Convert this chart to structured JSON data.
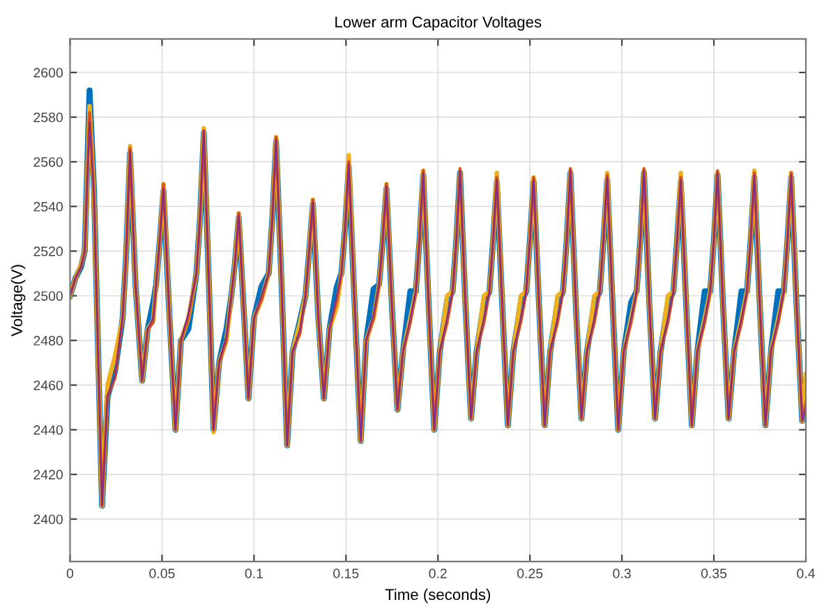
{
  "chart_data": {
    "type": "line",
    "title": "Lower arm Capacitor Voltages",
    "xlabel": "Time (seconds)",
    "ylabel": "Voltage(V)",
    "x": [
      0,
      0.003,
      0.006,
      0.008,
      0.0106,
      0.013,
      0.0174,
      0.0204,
      0.0244,
      0.0286,
      0.0306,
      0.0326,
      0.0356,
      0.0392,
      0.0422,
      0.0452,
      0.0468,
      0.0488,
      0.0508,
      0.0538,
      0.0573,
      0.0603,
      0.0643,
      0.0687,
      0.0707,
      0.0727,
      0.0757,
      0.078,
      0.081,
      0.085,
      0.0877,
      0.0897,
      0.0917,
      0.0947,
      0.097,
      0.1,
      0.104,
      0.108,
      0.11,
      0.112,
      0.115,
      0.118,
      0.121,
      0.125,
      0.128,
      0.13,
      0.132,
      0.135,
      0.138,
      0.141,
      0.145,
      0.1475,
      0.1495,
      0.1515,
      0.1545,
      0.158,
      0.161,
      0.165,
      0.168,
      0.17,
      0.172,
      0.175,
      0.178,
      0.181,
      0.185,
      0.188,
      0.19,
      0.192,
      0.195,
      0.198,
      0.201,
      0.205,
      0.208,
      0.21,
      0.212,
      0.215,
      0.218,
      0.221,
      0.225,
      0.228,
      0.23,
      0.232,
      0.235,
      0.238,
      0.241,
      0.245,
      0.248,
      0.25,
      0.252,
      0.255,
      0.258,
      0.261,
      0.265,
      0.268,
      0.27,
      0.272,
      0.275,
      0.278,
      0.281,
      0.285,
      0.288,
      0.29,
      0.292,
      0.295,
      0.298,
      0.301,
      0.305,
      0.308,
      0.31,
      0.312,
      0.315,
      0.318,
      0.321,
      0.325,
      0.328,
      0.33,
      0.332,
      0.335,
      0.338,
      0.341,
      0.345,
      0.348,
      0.35,
      0.352,
      0.355,
      0.358,
      0.361,
      0.365,
      0.368,
      0.37,
      0.372,
      0.375,
      0.378,
      0.381,
      0.385,
      0.388,
      0.39,
      0.392,
      0.395,
      0.398,
      0.4
    ],
    "series": [
      {
        "color": "#0072bd",
        "values": [
          2500,
          2508,
          2513,
          2520,
          2592,
          2548,
          2406,
          2455,
          2466,
          2490,
          2520,
          2564,
          2505,
          2462,
          2485,
          2497,
          2505,
          2525,
          2547,
          2495,
          2440,
          2480,
          2485,
          2510,
          2535,
          2573,
          2500,
          2440,
          2470,
          2485,
          2500,
          2515,
          2535,
          2490,
          2454,
          2490,
          2504,
          2510,
          2535,
          2569,
          2505,
          2433,
          2475,
          2489,
          2500,
          2520,
          2541,
          2490,
          2454,
          2485,
          2504,
          2510,
          2530,
          2558,
          2500,
          2435,
          2480,
          2503,
          2505,
          2525,
          2548,
          2495,
          2449,
          2475,
          2502,
          2502,
          2525,
          2554,
          2495,
          2440,
          2475,
          2498,
          2502,
          2525,
          2555,
          2495,
          2445,
          2475,
          2497,
          2502,
          2525,
          2551,
          2495,
          2442,
          2475,
          2497,
          2502,
          2525,
          2551,
          2495,
          2442,
          2475,
          2497,
          2502,
          2525,
          2555,
          2495,
          2445,
          2475,
          2497,
          2502,
          2525,
          2552,
          2495,
          2440,
          2475,
          2497,
          2502,
          2525,
          2555,
          2495,
          2445,
          2475,
          2497,
          2502,
          2525,
          2551,
          2495,
          2442,
          2475,
          2502,
          2502,
          2525,
          2554,
          2495,
          2445,
          2475,
          2502,
          2502,
          2525,
          2553,
          2495,
          2442,
          2475,
          2502,
          2502,
          2525,
          2553,
          2495,
          2444,
          2452
        ]
      },
      {
        "color": "#edb120",
        "values": [
          2500,
          2508,
          2514,
          2520,
          2585,
          2546,
          2406,
          2460,
          2473,
          2490,
          2520,
          2567,
          2505,
          2462,
          2485,
          2489,
          2505,
          2525,
          2550,
          2495,
          2440,
          2480,
          2490,
          2510,
          2535,
          2575,
          2500,
          2439,
          2470,
          2480,
          2500,
          2515,
          2537,
          2490,
          2454,
          2490,
          2498,
          2510,
          2535,
          2571,
          2505,
          2433,
          2475,
          2488,
          2500,
          2520,
          2543,
          2490,
          2454,
          2485,
          2495,
          2510,
          2530,
          2563,
          2500,
          2435,
          2480,
          2490,
          2505,
          2525,
          2550,
          2495,
          2449,
          2475,
          2490,
          2502,
          2525,
          2556,
          2495,
          2440,
          2475,
          2500,
          2502,
          2525,
          2555,
          2495,
          2445,
          2475,
          2500,
          2502,
          2525,
          2555,
          2495,
          2442,
          2475,
          2500,
          2502,
          2525,
          2553,
          2495,
          2442,
          2475,
          2500,
          2502,
          2525,
          2556,
          2495,
          2445,
          2475,
          2500,
          2502,
          2525,
          2555,
          2495,
          2440,
          2475,
          2490,
          2502,
          2525,
          2556,
          2495,
          2445,
          2475,
          2500,
          2502,
          2525,
          2555,
          2495,
          2442,
          2475,
          2490,
          2502,
          2525,
          2555,
          2495,
          2445,
          2475,
          2490,
          2502,
          2525,
          2556,
          2495,
          2442,
          2475,
          2490,
          2502,
          2525,
          2555,
          2495,
          2444,
          2465
        ]
      },
      {
        "color": "#d95319",
        "values": [
          2500,
          2508,
          2513,
          2520,
          2582,
          2546,
          2406,
          2455,
          2463,
          2490,
          2520,
          2566,
          2505,
          2462,
          2485,
          2488,
          2505,
          2525,
          2550,
          2495,
          2440,
          2480,
          2490,
          2510,
          2535,
          2574,
          2500,
          2440,
          2470,
          2480,
          2500,
          2515,
          2537,
          2490,
          2454,
          2490,
          2498,
          2510,
          2535,
          2571,
          2505,
          2433,
          2475,
          2483,
          2500,
          2520,
          2543,
          2490,
          2454,
          2485,
          2498,
          2510,
          2530,
          2560,
          2500,
          2435,
          2480,
          2490,
          2505,
          2525,
          2550,
          2495,
          2449,
          2475,
          2488,
          2502,
          2525,
          2556,
          2495,
          2440,
          2475,
          2488,
          2502,
          2525,
          2557,
          2495,
          2445,
          2475,
          2488,
          2502,
          2525,
          2553,
          2495,
          2442,
          2475,
          2488,
          2502,
          2525,
          2553,
          2495,
          2442,
          2475,
          2488,
          2502,
          2525,
          2557,
          2495,
          2445,
          2475,
          2488,
          2502,
          2525,
          2554,
          2495,
          2440,
          2475,
          2488,
          2502,
          2525,
          2557,
          2495,
          2445,
          2475,
          2488,
          2502,
          2525,
          2553,
          2495,
          2442,
          2475,
          2488,
          2502,
          2525,
          2556,
          2495,
          2445,
          2475,
          2488,
          2502,
          2525,
          2555,
          2495,
          2442,
          2475,
          2488,
          2502,
          2525,
          2555,
          2495,
          2444,
          2452
        ]
      },
      {
        "color": "#7e2f8e",
        "values": [
          2500,
          2508,
          2513,
          2520,
          2578,
          2545,
          2406,
          2455,
          2464,
          2490,
          2520,
          2565,
          2505,
          2462,
          2485,
          2490,
          2505,
          2525,
          2548,
          2495,
          2440,
          2480,
          2492,
          2510,
          2535,
          2574,
          2500,
          2440,
          2470,
          2482,
          2500,
          2515,
          2536,
          2490,
          2454,
          2490,
          2500,
          2510,
          2535,
          2570,
          2505,
          2433,
          2475,
          2485,
          2500,
          2520,
          2542,
          2490,
          2454,
          2485,
          2500,
          2510,
          2530,
          2559,
          2500,
          2435,
          2480,
          2492,
          2505,
          2525,
          2549,
          2495,
          2449,
          2475,
          2490,
          2502,
          2525,
          2555,
          2495,
          2440,
          2475,
          2490,
          2502,
          2525,
          2556,
          2495,
          2445,
          2475,
          2490,
          2502,
          2525,
          2552,
          2495,
          2442,
          2475,
          2490,
          2502,
          2525,
          2552,
          2495,
          2442,
          2475,
          2490,
          2502,
          2525,
          2556,
          2495,
          2445,
          2475,
          2490,
          2502,
          2525,
          2553,
          2495,
          2440,
          2475,
          2490,
          2502,
          2525,
          2556,
          2495,
          2445,
          2475,
          2490,
          2502,
          2525,
          2552,
          2495,
          2442,
          2475,
          2490,
          2502,
          2525,
          2555,
          2495,
          2445,
          2475,
          2490,
          2502,
          2525,
          2554,
          2495,
          2442,
          2475,
          2490,
          2502,
          2525,
          2554,
          2495,
          2444,
          2450
        ]
      }
    ],
    "xlim": [
      0,
      0.4
    ],
    "xticks": [
      0,
      0.05,
      0.1,
      0.15,
      0.2,
      0.25,
      0.3,
      0.35,
      0.4
    ],
    "ylim": [
      2381,
      2615
    ],
    "yticks": [
      2400,
      2420,
      2440,
      2460,
      2480,
      2500,
      2520,
      2540,
      2560,
      2580,
      2600
    ],
    "grid": true,
    "line_style": "solid",
    "marker": "none"
  }
}
